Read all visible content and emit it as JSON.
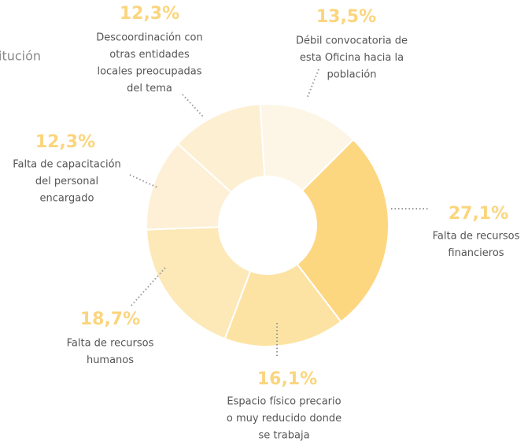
{
  "header_fragment": "itución",
  "chart_data": {
    "type": "donut",
    "categories": [
      [
        "Débil convocatoria de",
        "esta Oficina hacia la",
        "población"
      ],
      [
        "Falta de recursos",
        "financieros"
      ],
      [
        "Espacio físico precario",
        "o muy reducido donde",
        "se trabaja"
      ],
      [
        "Falta de recursos",
        "humanos"
      ],
      [
        "Falta de capacitación",
        "del personal",
        "encargado"
      ],
      [
        "Descoordinación con",
        "otras entidades",
        "locales preocupadas",
        "del tema"
      ]
    ],
    "values": [
      13.5,
      27.1,
      16.1,
      18.7,
      12.3,
      12.3
    ],
    "value_labels": [
      "13,5%",
      "27,1%",
      "16,1%",
      "18,7%",
      "12,3%",
      "12,3%"
    ],
    "colors": [
      "#fdf6e6",
      "#fdd680",
      "#fde3a3",
      "#fde8b7",
      "#fdf0d6",
      "#fdefd2"
    ]
  }
}
